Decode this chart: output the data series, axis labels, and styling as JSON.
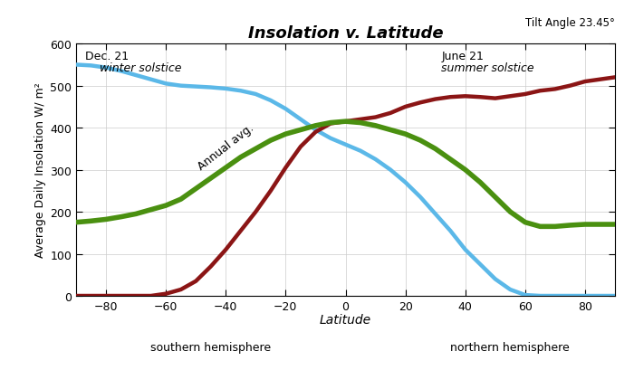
{
  "title": "Insolation v. Latitude",
  "subtitle": "Tilt Angle 23.45°",
  "ylabel": "Average Daily Insolation W/ m²",
  "xlabel": "Latitude",
  "xlim": [
    -90,
    90
  ],
  "ylim": [
    0,
    600
  ],
  "xticks": [
    -80,
    -60,
    -40,
    -20,
    0,
    20,
    40,
    60,
    80
  ],
  "yticks": [
    0,
    100,
    200,
    300,
    400,
    500,
    600
  ],
  "southern_label": "southern hemisphere",
  "northern_label": "northern hemisphere",
  "dec21_label_line1": "Dec. 21",
  "dec21_label_line2": "winter solstice",
  "june21_label_line1": "June 21",
  "june21_label_line2": "summer solstice",
  "annual_label": "Annual avg.",
  "blue_color": "#5BB8E8",
  "red_color": "#8B1515",
  "green_color": "#4A9010",
  "background_color": "#FFFFFF",
  "linewidth": 3.2,
  "annual_linewidth": 4.0,
  "lat": [
    -90,
    -85,
    -80,
    -75,
    -70,
    -65,
    -60,
    -55,
    -50,
    -45,
    -40,
    -35,
    -30,
    -25,
    -20,
    -15,
    -10,
    -5,
    0,
    5,
    10,
    15,
    20,
    25,
    30,
    35,
    40,
    45,
    50,
    55,
    60,
    65,
    70,
    75,
    80,
    85,
    90
  ],
  "dec21": [
    550,
    548,
    543,
    535,
    525,
    515,
    505,
    500,
    498,
    496,
    493,
    488,
    480,
    465,
    445,
    420,
    395,
    375,
    360,
    345,
    325,
    300,
    270,
    235,
    195,
    155,
    110,
    75,
    40,
    15,
    2,
    0,
    0,
    0,
    0,
    0,
    0
  ],
  "june21": [
    0,
    0,
    0,
    0,
    0,
    0,
    5,
    15,
    35,
    70,
    110,
    155,
    200,
    250,
    305,
    355,
    390,
    410,
    415,
    420,
    425,
    435,
    450,
    460,
    468,
    473,
    475,
    473,
    470,
    475,
    480,
    488,
    492,
    500,
    510,
    515,
    520
  ],
  "annual": [
    175,
    178,
    182,
    188,
    195,
    205,
    215,
    230,
    255,
    280,
    305,
    330,
    350,
    370,
    385,
    395,
    405,
    412,
    415,
    412,
    405,
    395,
    385,
    370,
    350,
    325,
    300,
    270,
    235,
    200,
    175,
    165,
    165,
    168,
    170,
    170,
    170
  ]
}
